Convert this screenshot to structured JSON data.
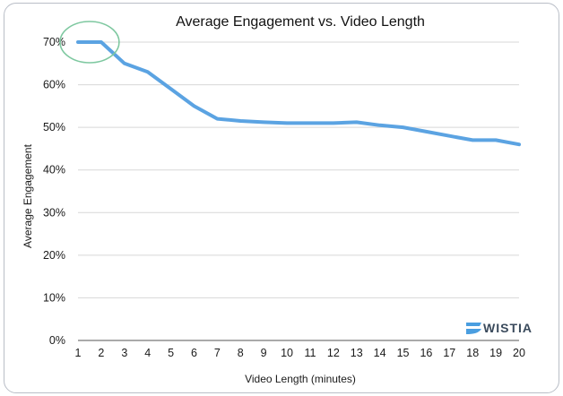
{
  "chart_data": {
    "type": "line",
    "title": "Average Engagement vs. Video Length",
    "xlabel": "Video Length (minutes)",
    "ylabel": "Average Engagement",
    "x": [
      1,
      2,
      3,
      4,
      5,
      6,
      7,
      8,
      9,
      10,
      11,
      12,
      13,
      14,
      15,
      16,
      17,
      18,
      19,
      20
    ],
    "x_tick_labels": [
      "1",
      "2",
      "3",
      "4",
      "5",
      "6",
      "7",
      "8",
      "9",
      "10",
      "11",
      "12",
      "13",
      "14",
      "15",
      "16",
      "17",
      "18",
      "19",
      "20"
    ],
    "series": [
      {
        "values": [
          70,
          70,
          65,
          63,
          59,
          55,
          52,
          51.5,
          51.2,
          51,
          51,
          51,
          51.2,
          50.5,
          50,
          49,
          48,
          47,
          47,
          46
        ],
        "color": "#5ba3e2"
      }
    ],
    "ylim": [
      0,
      70
    ],
    "y_ticks": [
      0,
      10,
      20,
      30,
      40,
      50,
      60,
      70
    ],
    "y_tick_labels": [
      "0%",
      "10%",
      "20%",
      "30%",
      "40%",
      "50%",
      "60%",
      "70%"
    ],
    "grid": true,
    "legend": "none",
    "annotations": [
      {
        "type": "circle",
        "x_range": [
          1,
          2
        ],
        "y": 70,
        "color": "#7ec8a0"
      }
    ],
    "watermark": {
      "text": "WISTIA",
      "color": "#3a4a5c",
      "icon": "wistia-logo-icon",
      "icon_color": "#4a9ee0"
    }
  }
}
